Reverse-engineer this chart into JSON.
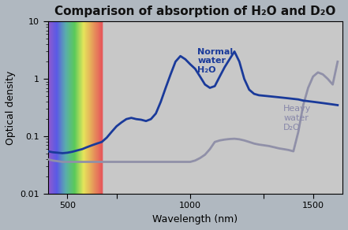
{
  "title": "Comparison of absorption of H₂O and D₂O",
  "xlabel": "Wavelength (nm)",
  "ylabel": "Optical density",
  "xlim": [
    420,
    1620
  ],
  "ylim_log": [
    0.01,
    10
  ],
  "background_color": "#c8c8c8",
  "outer_background": "#b0b8c0",
  "h2o_color": "#1a3a9a",
  "d2o_color": "#9090a8",
  "title_color": "#111111",
  "label_color": "#1a3a9a",
  "d2o_label_color": "#8888aa",
  "spectrum_x_start": 420,
  "spectrum_x_end": 640,
  "h2o_x": [
    420,
    440,
    460,
    480,
    500,
    520,
    540,
    560,
    580,
    600,
    620,
    640,
    660,
    680,
    700,
    720,
    740,
    760,
    780,
    800,
    820,
    840,
    860,
    880,
    900,
    920,
    940,
    960,
    980,
    1000,
    1020,
    1040,
    1060,
    1080,
    1100,
    1120,
    1140,
    1160,
    1180,
    1200,
    1220,
    1240,
    1260,
    1280,
    1300,
    1320,
    1340,
    1360,
    1380,
    1400,
    1420,
    1440,
    1460,
    1480,
    1500,
    1520,
    1540,
    1560,
    1580,
    1600
  ],
  "h2o_y": [
    0.055,
    0.053,
    0.052,
    0.051,
    0.052,
    0.054,
    0.057,
    0.06,
    0.065,
    0.07,
    0.075,
    0.08,
    0.095,
    0.12,
    0.15,
    0.175,
    0.2,
    0.21,
    0.2,
    0.195,
    0.185,
    0.2,
    0.25,
    0.4,
    0.7,
    1.2,
    2.0,
    2.5,
    2.2,
    1.8,
    1.5,
    1.1,
    0.8,
    0.7,
    0.75,
    1.1,
    1.6,
    2.2,
    3.0,
    2.0,
    1.0,
    0.65,
    0.55,
    0.52,
    0.51,
    0.5,
    0.49,
    0.48,
    0.47,
    0.46,
    0.45,
    0.44,
    0.42,
    0.41,
    0.4,
    0.39,
    0.38,
    0.37,
    0.36,
    0.35
  ],
  "d2o_x": [
    420,
    440,
    460,
    480,
    500,
    520,
    540,
    560,
    580,
    600,
    620,
    640,
    660,
    680,
    700,
    720,
    740,
    760,
    780,
    800,
    820,
    840,
    860,
    880,
    900,
    920,
    940,
    960,
    980,
    1000,
    1020,
    1040,
    1060,
    1080,
    1100,
    1120,
    1140,
    1160,
    1180,
    1200,
    1220,
    1240,
    1260,
    1280,
    1300,
    1320,
    1340,
    1360,
    1380,
    1400,
    1420,
    1440,
    1460,
    1480,
    1500,
    1520,
    1540,
    1560,
    1580,
    1600
  ],
  "d2o_y": [
    0.04,
    0.038,
    0.037,
    0.036,
    0.036,
    0.036,
    0.036,
    0.036,
    0.036,
    0.036,
    0.036,
    0.036,
    0.036,
    0.036,
    0.036,
    0.036,
    0.036,
    0.036,
    0.036,
    0.036,
    0.036,
    0.036,
    0.036,
    0.036,
    0.036,
    0.036,
    0.036,
    0.036,
    0.036,
    0.036,
    0.038,
    0.042,
    0.048,
    0.06,
    0.08,
    0.085,
    0.088,
    0.09,
    0.091,
    0.089,
    0.085,
    0.08,
    0.075,
    0.072,
    0.07,
    0.068,
    0.065,
    0.062,
    0.06,
    0.058,
    0.055,
    0.12,
    0.35,
    0.7,
    1.1,
    1.3,
    1.2,
    1.0,
    0.8,
    2.0
  ]
}
